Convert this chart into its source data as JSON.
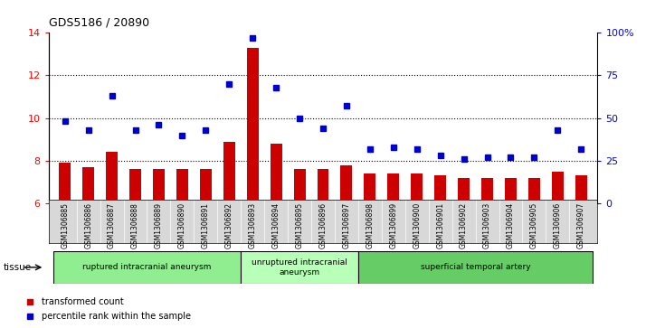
{
  "title": "GDS5186 / 20890",
  "samples": [
    "GSM1306885",
    "GSM1306886",
    "GSM1306887",
    "GSM1306888",
    "GSM1306889",
    "GSM1306890",
    "GSM1306891",
    "GSM1306892",
    "GSM1306893",
    "GSM1306894",
    "GSM1306895",
    "GSM1306896",
    "GSM1306897",
    "GSM1306898",
    "GSM1306899",
    "GSM1306900",
    "GSM1306901",
    "GSM1306902",
    "GSM1306903",
    "GSM1306904",
    "GSM1306905",
    "GSM1306906",
    "GSM1306907"
  ],
  "bar_values": [
    7.9,
    7.7,
    8.4,
    7.6,
    7.6,
    7.6,
    7.6,
    8.9,
    13.3,
    8.8,
    7.6,
    7.6,
    7.8,
    7.4,
    7.4,
    7.4,
    7.3,
    7.2,
    7.2,
    7.2,
    7.2,
    7.5,
    7.3
  ],
  "scatter_values": [
    48,
    43,
    63,
    43,
    46,
    40,
    43,
    70,
    97,
    68,
    50,
    44,
    57,
    32,
    33,
    32,
    28,
    26,
    27,
    27,
    27,
    43,
    32
  ],
  "ylim_left": [
    6,
    14
  ],
  "ylim_right": [
    0,
    100
  ],
  "yticks_left": [
    6,
    8,
    10,
    12,
    14
  ],
  "yticks_right": [
    0,
    25,
    50,
    75,
    100
  ],
  "ytick_labels_right": [
    "0",
    "25",
    "50",
    "75",
    "100%"
  ],
  "bar_color": "#cc0000",
  "scatter_color": "#0000cc",
  "plot_bg": "#ffffff",
  "xticklabel_bg": "#d8d8d8",
  "groups": [
    {
      "label": "ruptured intracranial aneurysm",
      "start": 0,
      "end": 8,
      "color": "#90ee90"
    },
    {
      "label": "unruptured intracranial\naneurysm",
      "start": 8,
      "end": 13,
      "color": "#b8ffb8"
    },
    {
      "label": "superficial temporal artery",
      "start": 13,
      "end": 23,
      "color": "#66cc66"
    }
  ],
  "tissue_label": "tissue",
  "legend_bar_label": "transformed count",
  "legend_scatter_label": "percentile rank within the sample",
  "dotted_yticks": [
    8,
    10,
    12
  ]
}
